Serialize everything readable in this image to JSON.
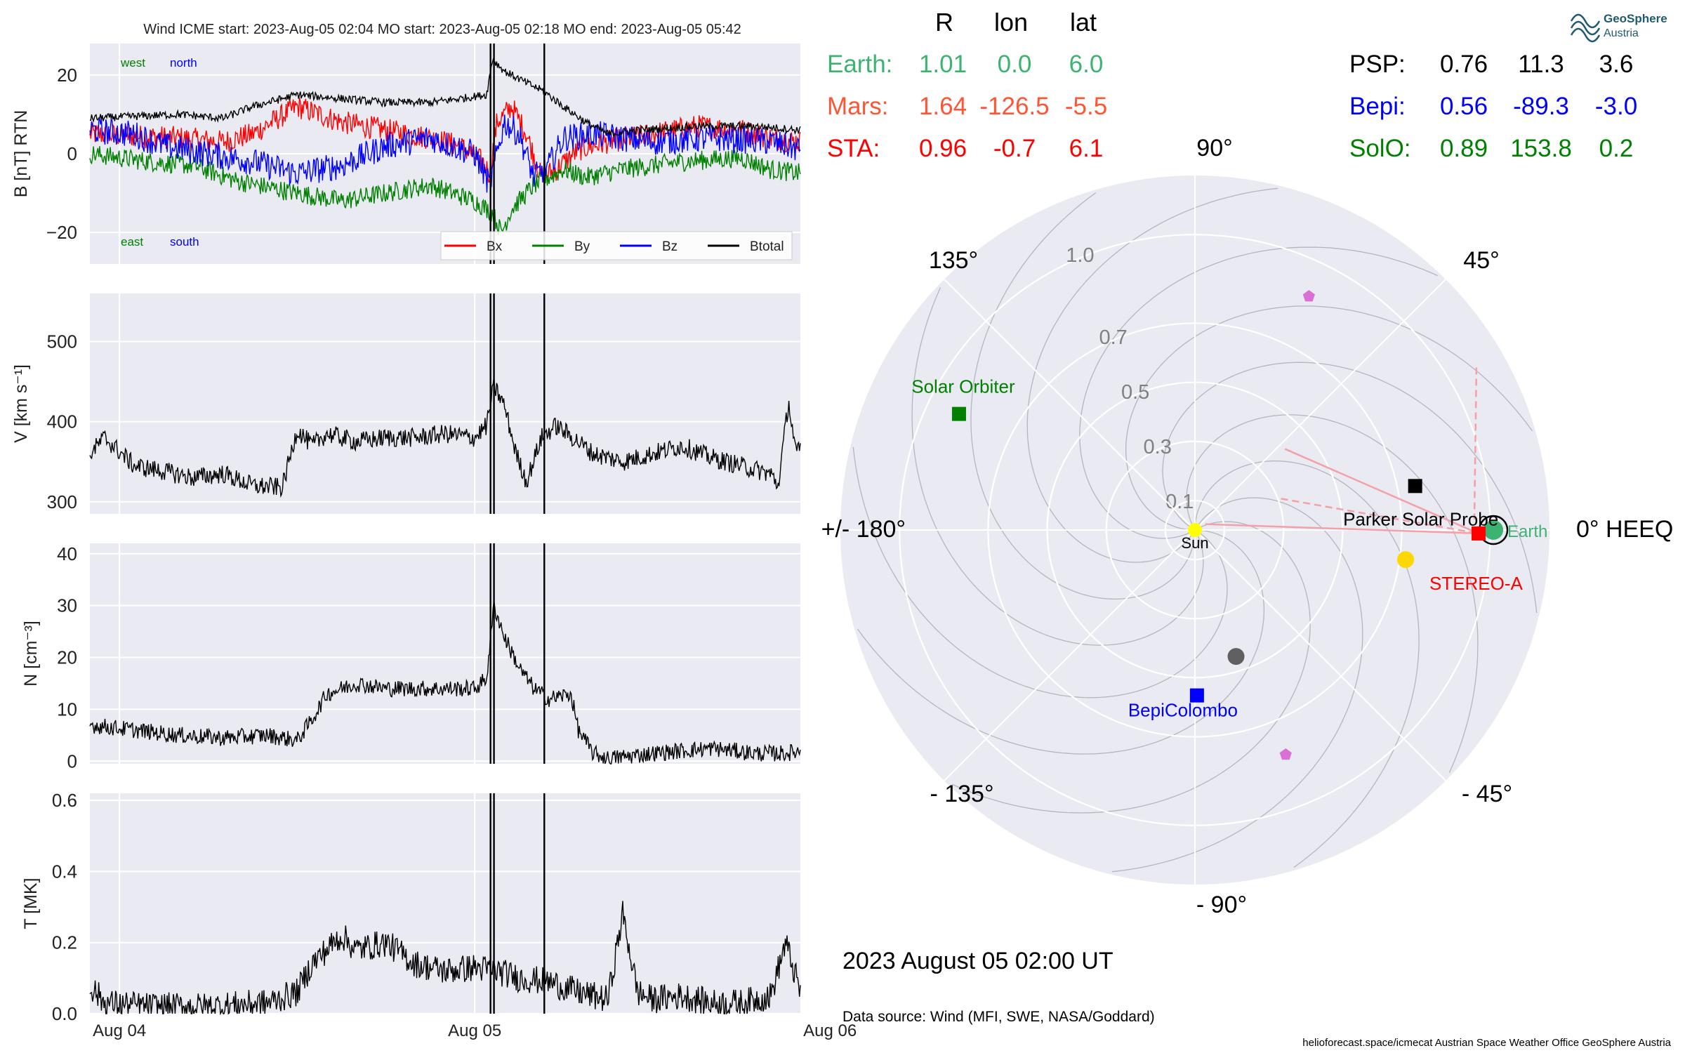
{
  "header": {
    "title": "Wind    ICME start: 2023-Aug-05 02:04   MO start: 2023-Aug-05 02:18   MO end: 2023-Aug-05 05:42"
  },
  "colors": {
    "panel_bg": "#eaeaf2",
    "bx": "#ff0000",
    "by": "#008000",
    "bz": "#0000ff",
    "btotal": "#000000",
    "earth": "#3cb371",
    "mars": "#ff5533",
    "sta": "#ff0000",
    "bepi": "#0000ff",
    "solo": "#008000",
    "psp": "#000000"
  },
  "x_axis": {
    "tick_labels": [
      "Aug 04",
      "Aug 05",
      "Aug 06"
    ],
    "range_hours": [
      -26,
      22
    ]
  },
  "event_lines_hours": [
    1.067,
    1.3,
    4.7
  ],
  "chart_data": [
    {
      "type": "line",
      "ylabel": "B [nT] RTN",
      "ylim": [
        -28,
        28
      ],
      "yticks": [
        -20,
        0,
        20
      ],
      "ytick_labels": [
        "−20",
        "0",
        "20"
      ],
      "grid": true,
      "annotations": {
        "west": "west",
        "north": "north",
        "east": "east",
        "south": "south"
      },
      "legend": {
        "placement": "bottom-right",
        "entries": [
          "Bx",
          "By",
          "Bz",
          "Btotal"
        ]
      },
      "series": [
        {
          "name": "Bx",
          "color": "#ff0000",
          "style": "line",
          "points": [
            [
              -26,
              5
            ],
            [
              -20,
              4
            ],
            [
              -17,
              3
            ],
            [
              -15,
              5
            ],
            [
              -12,
              12
            ],
            [
              -9,
              8
            ],
            [
              -6,
              6
            ],
            [
              -3,
              4
            ],
            [
              -1,
              2
            ],
            [
              0.5,
              -2
            ],
            [
              1,
              -5
            ],
            [
              1.5,
              8
            ],
            [
              2.5,
              12
            ],
            [
              3.5,
              5
            ],
            [
              4.5,
              -6
            ],
            [
              5.5,
              -4
            ],
            [
              7,
              1
            ],
            [
              9,
              3
            ],
            [
              12,
              5
            ],
            [
              15,
              7
            ],
            [
              18,
              6
            ],
            [
              20,
              4
            ],
            [
              22,
              3
            ]
          ],
          "amp": 3
        },
        {
          "name": "By",
          "color": "#008000",
          "style": "line",
          "points": [
            [
              -26,
              0
            ],
            [
              -22,
              -2
            ],
            [
              -19,
              -3
            ],
            [
              -16,
              -7
            ],
            [
              -12,
              -10
            ],
            [
              -9,
              -12
            ],
            [
              -6,
              -10
            ],
            [
              -3,
              -8
            ],
            [
              0,
              -12
            ],
            [
              1.2,
              -15
            ],
            [
              1.8,
              -20
            ],
            [
              2.5,
              -14
            ],
            [
              4,
              -8
            ],
            [
              6,
              -4
            ],
            [
              7.5,
              -6
            ],
            [
              10,
              -4
            ],
            [
              14,
              -2
            ],
            [
              18,
              -1
            ],
            [
              20,
              -4
            ],
            [
              22,
              -5
            ]
          ],
          "amp": 2.5
        },
        {
          "name": "Bz",
          "color": "#0000ff",
          "style": "line",
          "points": [
            [
              -26,
              6
            ],
            [
              -23,
              5
            ],
            [
              -21,
              2
            ],
            [
              -18,
              0
            ],
            [
              -15,
              -2
            ],
            [
              -12,
              -5
            ],
            [
              -9,
              -3
            ],
            [
              -6,
              2
            ],
            [
              -3,
              4
            ],
            [
              0,
              0
            ],
            [
              1,
              -8
            ],
            [
              2,
              8
            ],
            [
              3,
              5
            ],
            [
              4,
              -6
            ],
            [
              5,
              -3
            ],
            [
              6,
              4
            ],
            [
              8,
              5
            ],
            [
              12,
              3
            ],
            [
              16,
              4
            ],
            [
              20,
              3
            ],
            [
              22,
              1
            ]
          ],
          "amp": 3.5
        },
        {
          "name": "Btotal",
          "color": "#000000",
          "style": "line",
          "points": [
            [
              -26,
              9
            ],
            [
              -20,
              10
            ],
            [
              -17,
              9
            ],
            [
              -15,
              12
            ],
            [
              -12,
              15
            ],
            [
              -9,
              14
            ],
            [
              -6,
              13
            ],
            [
              -3,
              13
            ],
            [
              -1,
              14
            ],
            [
              0.8,
              15
            ],
            [
              1.2,
              24
            ],
            [
              2,
              21
            ],
            [
              3.5,
              18
            ],
            [
              4.6,
              16
            ],
            [
              6,
              12
            ],
            [
              7.5,
              8
            ],
            [
              9,
              5
            ],
            [
              11,
              6
            ],
            [
              15,
              7
            ],
            [
              19,
              7
            ],
            [
              22,
              6
            ]
          ],
          "amp": 1
        }
      ]
    },
    {
      "type": "line",
      "ylabel": "V [km s⁻¹]",
      "ylim": [
        285,
        560
      ],
      "yticks": [
        300,
        400,
        500
      ],
      "ytick_labels": [
        "300",
        "400",
        "500"
      ],
      "grid": true,
      "series": [
        {
          "name": "V",
          "color": "#000000",
          "style": "line",
          "points": [
            [
              -26,
              360
            ],
            [
              -25,
              380
            ],
            [
              -23,
              345
            ],
            [
              -21,
              338
            ],
            [
              -19,
              330
            ],
            [
              -17,
              335
            ],
            [
              -15,
              320
            ],
            [
              -13,
              318
            ],
            [
              -12,
              390
            ],
            [
              -11,
              370
            ],
            [
              -10,
              385
            ],
            [
              -8,
              375
            ],
            [
              -6,
              380
            ],
            [
              -4,
              380
            ],
            [
              -2,
              385
            ],
            [
              0,
              380
            ],
            [
              0.8,
              395
            ],
            [
              1.3,
              445
            ],
            [
              2,
              420
            ],
            [
              2.8,
              360
            ],
            [
              3.5,
              325
            ],
            [
              4.5,
              380
            ],
            [
              5.5,
              395
            ],
            [
              7,
              375
            ],
            [
              8,
              360
            ],
            [
              10,
              350
            ],
            [
              12,
              360
            ],
            [
              14,
              370
            ],
            [
              16,
              355
            ],
            [
              18,
              345
            ],
            [
              20,
              335
            ],
            [
              20.5,
              320
            ],
            [
              21.2,
              425
            ],
            [
              21.7,
              360
            ],
            [
              22,
              365
            ]
          ],
          "amp": 12
        }
      ]
    },
    {
      "type": "line",
      "ylabel": "N [cm⁻³]",
      "ylim": [
        -0.5,
        42
      ],
      "yticks": [
        0,
        10,
        20,
        30,
        40
      ],
      "ytick_labels": [
        "0",
        "10",
        "20",
        "30",
        "40"
      ],
      "grid": true,
      "series": [
        {
          "name": "N",
          "color": "#000000",
          "style": "line",
          "points": [
            [
              -26,
              7
            ],
            [
              -23,
              6
            ],
            [
              -20,
              5
            ],
            [
              -17,
              4.5
            ],
            [
              -14,
              5
            ],
            [
              -12,
              4
            ],
            [
              -11,
              8
            ],
            [
              -10,
              13
            ],
            [
              -8,
              15
            ],
            [
              -6,
              14
            ],
            [
              -4,
              14
            ],
            [
              -2,
              14
            ],
            [
              0,
              14
            ],
            [
              0.8,
              16
            ],
            [
              1.3,
              30
            ],
            [
              2,
              24
            ],
            [
              3,
              18
            ],
            [
              4,
              14
            ],
            [
              5,
              12
            ],
            [
              6.5,
              13
            ],
            [
              7,
              6
            ],
            [
              8,
              1.5
            ],
            [
              9,
              0.5
            ],
            [
              12,
              1.5
            ],
            [
              16,
              2.5
            ],
            [
              19,
              1.5
            ],
            [
              21,
              1.5
            ],
            [
              22,
              2
            ]
          ],
          "amp": 1.6
        }
      ]
    },
    {
      "type": "line",
      "ylabel": "T [MK]",
      "ylim": [
        0,
        0.62
      ],
      "yticks": [
        0.0,
        0.2,
        0.4,
        0.6
      ],
      "ytick_labels": [
        "0.0",
        "0.2",
        "0.4",
        "0.6"
      ],
      "grid": true,
      "series": [
        {
          "name": "T",
          "color": "#000000",
          "style": "line",
          "points": [
            [
              -26,
              0.08
            ],
            [
              -25,
              0.03
            ],
            [
              -22,
              0.02
            ],
            [
              -18,
              0.02
            ],
            [
              -14,
              0.03
            ],
            [
              -12,
              0.06
            ],
            [
              -11,
              0.14
            ],
            [
              -9,
              0.22
            ],
            [
              -8,
              0.18
            ],
            [
              -6,
              0.2
            ],
            [
              -4,
              0.14
            ],
            [
              -2,
              0.12
            ],
            [
              0,
              0.13
            ],
            [
              1.5,
              0.12
            ],
            [
              3,
              0.1
            ],
            [
              5,
              0.09
            ],
            [
              7,
              0.06
            ],
            [
              9,
              0.04
            ],
            [
              10,
              0.28
            ],
            [
              11,
              0.06
            ],
            [
              12,
              0.04
            ],
            [
              14,
              0.05
            ],
            [
              16,
              0.03
            ],
            [
              18,
              0.03
            ],
            [
              20,
              0.05
            ],
            [
              21,
              0.2
            ],
            [
              22,
              0.06
            ]
          ],
          "amp": 0.04
        }
      ]
    },
    {
      "type": "scatter",
      "title": "0° HEEQ",
      "polar": true,
      "theta_labels": [
        {
          "angle": 0,
          "text": "0° HEEQ"
        },
        {
          "angle": 45,
          "text": "45°"
        },
        {
          "angle": 90,
          "text": "90°"
        },
        {
          "angle": 135,
          "text": "135°"
        },
        {
          "angle": 180,
          "text": "+/- 180°"
        },
        {
          "angle": -135,
          "text": "- 135°"
        },
        {
          "angle": -90,
          "text": "- 90°"
        },
        {
          "angle": -45,
          "text": "- 45°"
        }
      ],
      "r_rings": [
        0.1,
        0.3,
        0.5,
        0.7,
        1.0
      ],
      "r_labels": [
        "0.1",
        "0.3",
        "0.5",
        "0.7",
        "1.0"
      ],
      "rmax": 1.2,
      "bodies": [
        {
          "name": "Sun",
          "r": 0,
          "lon": 0,
          "color": "#ffff00",
          "marker": "circle",
          "label": "Sun"
        },
        {
          "name": "Earth",
          "r": 1.01,
          "lon": 0.0,
          "color": "#3cb371",
          "marker": "circle",
          "label": "Earth"
        },
        {
          "name": "STEREO-A",
          "r": 0.96,
          "lon": -0.7,
          "color": "#ff0000",
          "marker": "square",
          "label": "STEREO-A"
        },
        {
          "name": "Parker Solar Probe",
          "r": 0.76,
          "lon": 11.3,
          "color": "#000000",
          "marker": "square",
          "label": "Parker Solar Probe"
        },
        {
          "name": "BepiColombo",
          "r": 0.56,
          "lon": -89.3,
          "color": "#0000ff",
          "marker": "square",
          "label": "BepiColombo"
        },
        {
          "name": "Solar Orbiter",
          "r": 0.89,
          "lon": 153.8,
          "color": "#008000",
          "marker": "square",
          "label": "Solar Orbiter"
        },
        {
          "name": "Venus",
          "r": 0.72,
          "lon": -8.0,
          "color": "#ffd700",
          "marker": "circle",
          "label": ""
        },
        {
          "name": "Mercury",
          "r": 0.45,
          "lon": -72.0,
          "color": "#606060",
          "marker": "circle",
          "label": ""
        },
        {
          "name": "Juno",
          "r": 0.88,
          "lon": 64.0,
          "color": "#da70d6",
          "marker": "pentagon",
          "label": ""
        },
        {
          "name": "Other",
          "r": 0.82,
          "lon": -68.0,
          "color": "#da70d6",
          "marker": "pentagon",
          "label": ""
        }
      ],
      "table": {
        "headers": [
          "R",
          "lon",
          "lat"
        ],
        "left_rows": [
          {
            "name": "Earth:",
            "r": "1.01",
            "lon": "0.0",
            "lat": "6.0",
            "color": "#3cb371"
          },
          {
            "name": "Mars:",
            "r": "1.64",
            "lon": "-126.5",
            "lat": "-5.5",
            "color": "#ff5533"
          },
          {
            "name": "STA:",
            "r": "0.96",
            "lon": "-0.7",
            "lat": "6.1",
            "color": "#ff0000"
          }
        ],
        "right_rows": [
          {
            "name": "PSP:",
            "r": "0.76",
            "lon": "11.3",
            "lat": "3.6",
            "color": "#000000"
          },
          {
            "name": "Bepi:",
            "r": "0.56",
            "lon": "-89.3",
            "lat": "-3.0",
            "color": "#0000ff"
          },
          {
            "name": "SolO:",
            "r": "0.89",
            "lon": "153.8",
            "lat": "0.2",
            "color": "#008000"
          }
        ]
      }
    }
  ],
  "date_label": "2023 August 05  02:00 UT",
  "data_source": "Data source: Wind (MFI, SWE, NASA/Goddard)",
  "footer": "helioforecast.space/icmecat   Austrian Space Weather Office   GeoSphere Austria",
  "logo": {
    "line1": "GeoSphere",
    "line2": "Austria"
  }
}
